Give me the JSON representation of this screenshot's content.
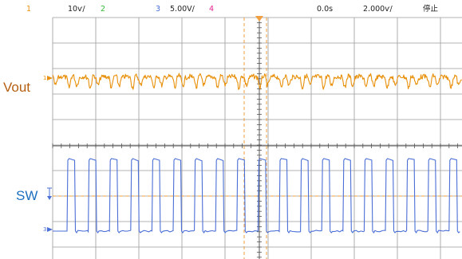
{
  "status_bar": {
    "ch1_number": "1",
    "ch1_scale": "10ѵ/",
    "ch2_number": "2",
    "ch3_number": "3",
    "ch3_scale": "5.00V/",
    "ch4_number": "4",
    "time_position": "0.0s",
    "time_base": "2.000ѵ/",
    "run_state": "停止"
  },
  "labels": {
    "vout": "Vout",
    "sw": "SW"
  },
  "markers": {
    "ch1_marker": "1",
    "ch3_marker": "3"
  },
  "colors": {
    "ch1": "#e8900a",
    "ch2": "#37b737",
    "ch3": "#4a6fd6",
    "ch4": "#e0258f",
    "vout_label": "#b45f12",
    "sw_label": "#1c6fc0",
    "grid": "#9a9a9a",
    "cursor": "#f0a040"
  },
  "icons": {
    "trigger_marker": "trigger-down-triangle-icon",
    "ch1_ground": "ch1-ground-arrow-icon",
    "ch3_ground": "ch3-ground-arrow-icon",
    "trigger_level": "trigger-level-arrow-icon"
  }
}
